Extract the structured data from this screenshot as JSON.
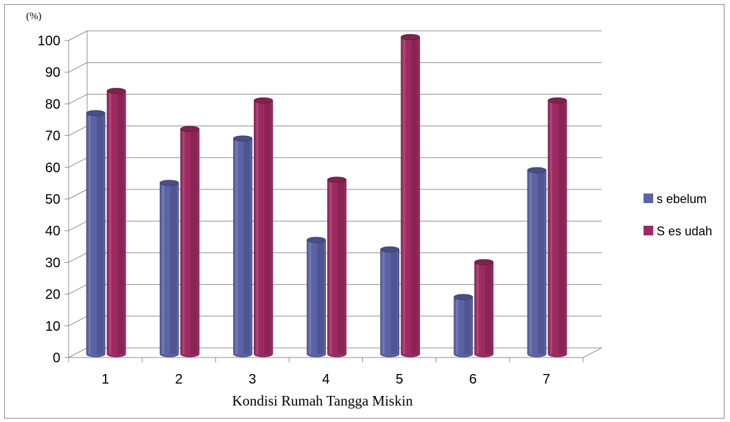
{
  "chart_data": {
    "type": "bar",
    "title": "",
    "unit_label": "(%)",
    "xlabel": "Kondisi Rumah Tangga Miskin",
    "ylabel": "",
    "ylim": [
      0,
      100
    ],
    "yticks": [
      0,
      10,
      20,
      30,
      40,
      50,
      60,
      70,
      80,
      90,
      100
    ],
    "categories": [
      "1",
      "2",
      "3",
      "4",
      "5",
      "6",
      "7"
    ],
    "series": [
      {
        "name": "s ebelum",
        "values": [
          76,
          54,
          68,
          36,
          33,
          18,
          58
        ],
        "color": "#5b63a6"
      },
      {
        "name": "S es udah",
        "values": [
          83,
          71,
          80,
          55,
          100,
          29,
          80
        ],
        "color": "#9e2a62"
      }
    ],
    "legend_position": "right",
    "grid": true,
    "style": "3d-cylinder"
  }
}
